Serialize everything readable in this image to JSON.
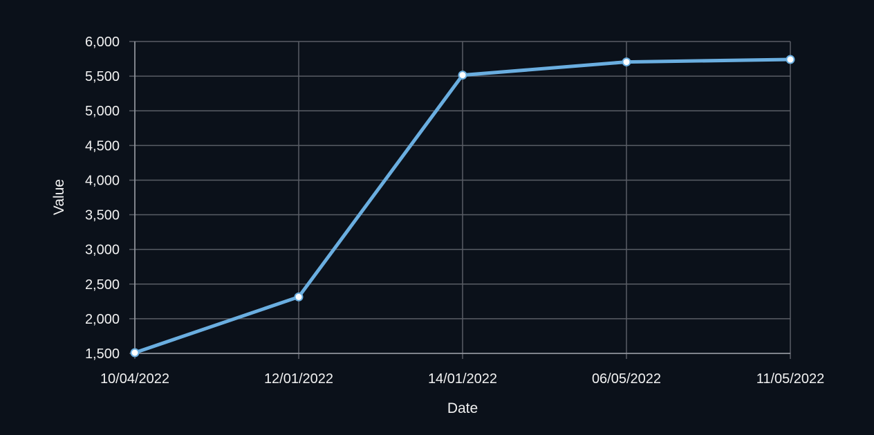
{
  "chart_data": {
    "type": "line",
    "categories": [
      "10/04/2022",
      "12/01/2022",
      "14/01/2022",
      "06/05/2022",
      "11/05/2022"
    ],
    "values": [
      1510,
      2315,
      5515,
      5705,
      5740
    ],
    "xlabel": "Date",
    "ylabel": "Value",
    "ylim": [
      1500,
      6000
    ],
    "yticks": [
      "1,500",
      "2,000",
      "2,500",
      "3,000",
      "3,500",
      "4,000",
      "4,500",
      "5,000",
      "5,500",
      "6,000"
    ],
    "grid": true,
    "colors": {
      "background": "#0b111a",
      "line": "#6aaee0",
      "grid": "#5a5e66",
      "text": "#f2f2f2",
      "marker_fill": "#ffffff"
    }
  }
}
